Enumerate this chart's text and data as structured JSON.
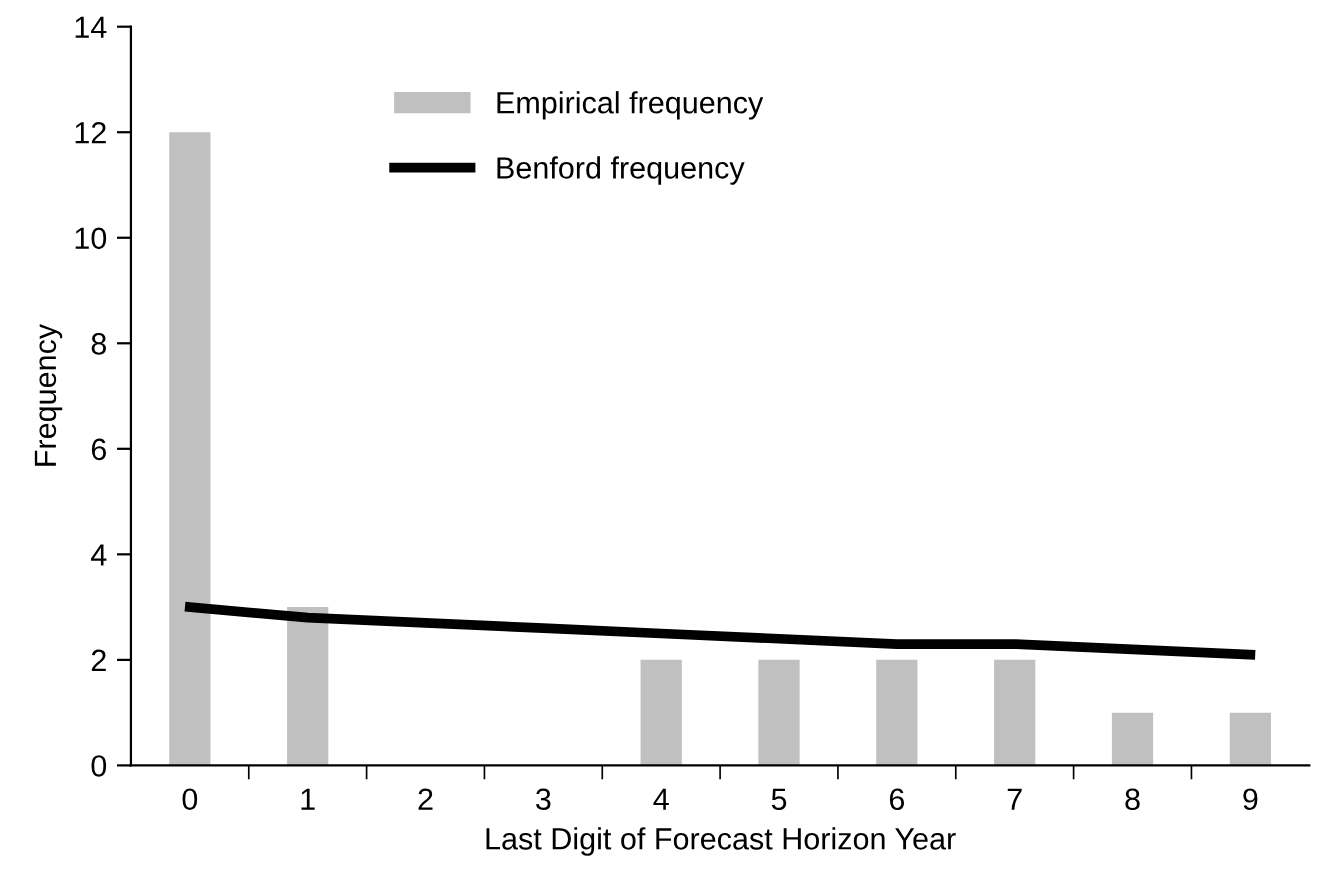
{
  "chart_data": {
    "type": "bar",
    "xlabel": "Last Digit of Forecast Horizon Year",
    "ylabel": "Frequency",
    "categories": [
      "0",
      "1",
      "2",
      "3",
      "4",
      "5",
      "6",
      "7",
      "8",
      "9"
    ],
    "series": [
      {
        "name": "Empirical frequency",
        "color": "#c0c0c0",
        "values": [
          12,
          3,
          0,
          0,
          2,
          2,
          2,
          2,
          1,
          1
        ]
      },
      {
        "name": "Benford frequency",
        "type": "line",
        "color": "#000000",
        "values": [
          3.0,
          2.8,
          2.7,
          2.6,
          2.5,
          2.4,
          2.3,
          2.3,
          2.2,
          2.1
        ]
      }
    ],
    "ylim": [
      0,
      14
    ],
    "yticks": [
      0,
      2,
      4,
      6,
      8,
      10,
      12,
      14
    ],
    "legend": "top",
    "grid": false
  }
}
